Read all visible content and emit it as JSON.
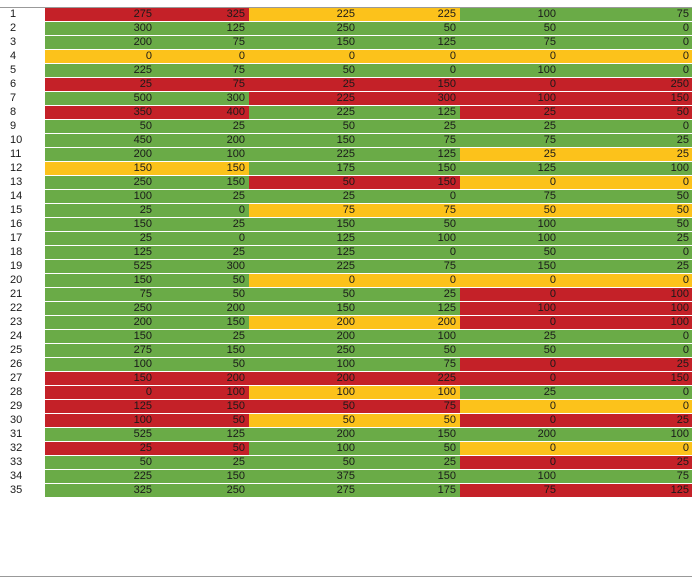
{
  "colors": {
    "green": "#6aab47",
    "red": "#c42128",
    "yellow": "#fcc21b"
  },
  "rows": [
    {
      "n": "1",
      "v": [
        "275",
        "325",
        "225",
        "225",
        "100",
        "75"
      ],
      "c": [
        "red",
        "yellow",
        "green"
      ]
    },
    {
      "n": "2",
      "v": [
        "300",
        "125",
        "250",
        "50",
        "50",
        "0"
      ],
      "c": [
        "green",
        "green",
        "green"
      ]
    },
    {
      "n": "3",
      "v": [
        "200",
        "75",
        "150",
        "125",
        "75",
        "0"
      ],
      "c": [
        "green",
        "green",
        "green"
      ]
    },
    {
      "n": "4",
      "v": [
        "0",
        "0",
        "0",
        "0",
        "0",
        "0"
      ],
      "c": [
        "yellow",
        "yellow",
        "yellow"
      ]
    },
    {
      "n": "5",
      "v": [
        "225",
        "75",
        "50",
        "0",
        "100",
        "0"
      ],
      "c": [
        "green",
        "green",
        "green"
      ]
    },
    {
      "n": "6",
      "v": [
        "25",
        "75",
        "25",
        "150",
        "0",
        "250"
      ],
      "c": [
        "red",
        "red",
        "red"
      ]
    },
    {
      "n": "7",
      "v": [
        "500",
        "300",
        "225",
        "300",
        "100",
        "150"
      ],
      "c": [
        "green",
        "red",
        "red"
      ]
    },
    {
      "n": "8",
      "v": [
        "350",
        "400",
        "225",
        "125",
        "25",
        "50"
      ],
      "c": [
        "red",
        "green",
        "red"
      ]
    },
    {
      "n": "9",
      "v": [
        "50",
        "25",
        "50",
        "25",
        "25",
        "0"
      ],
      "c": [
        "green",
        "green",
        "green"
      ]
    },
    {
      "n": "10",
      "v": [
        "450",
        "200",
        "150",
        "75",
        "75",
        "25"
      ],
      "c": [
        "green",
        "green",
        "green"
      ]
    },
    {
      "n": "11",
      "v": [
        "200",
        "100",
        "225",
        "125",
        "25",
        "25"
      ],
      "c": [
        "green",
        "green",
        "yellow"
      ]
    },
    {
      "n": "12",
      "v": [
        "150",
        "150",
        "175",
        "150",
        "125",
        "100"
      ],
      "c": [
        "yellow",
        "green",
        "green"
      ]
    },
    {
      "n": "13",
      "v": [
        "250",
        "150",
        "50",
        "150",
        "0",
        "0"
      ],
      "c": [
        "green",
        "red",
        "yellow"
      ]
    },
    {
      "n": "14",
      "v": [
        "100",
        "25",
        "25",
        "0",
        "75",
        "50"
      ],
      "c": [
        "green",
        "green",
        "green"
      ]
    },
    {
      "n": "15",
      "v": [
        "25",
        "0",
        "75",
        "75",
        "50",
        "50"
      ],
      "c": [
        "green",
        "yellow",
        "yellow"
      ]
    },
    {
      "n": "16",
      "v": [
        "150",
        "25",
        "150",
        "50",
        "100",
        "50"
      ],
      "c": [
        "green",
        "green",
        "green"
      ]
    },
    {
      "n": "17",
      "v": [
        "25",
        "0",
        "125",
        "100",
        "100",
        "25"
      ],
      "c": [
        "green",
        "green",
        "green"
      ]
    },
    {
      "n": "18",
      "v": [
        "125",
        "25",
        "125",
        "0",
        "50",
        "0"
      ],
      "c": [
        "green",
        "green",
        "green"
      ]
    },
    {
      "n": "19",
      "v": [
        "525",
        "300",
        "225",
        "75",
        "150",
        "25"
      ],
      "c": [
        "green",
        "green",
        "green"
      ]
    },
    {
      "n": "20",
      "v": [
        "150",
        "50",
        "0",
        "0",
        "0",
        "0"
      ],
      "c": [
        "green",
        "yellow",
        "yellow"
      ]
    },
    {
      "n": "21",
      "v": [
        "75",
        "50",
        "50",
        "25",
        "0",
        "100"
      ],
      "c": [
        "green",
        "green",
        "red"
      ]
    },
    {
      "n": "22",
      "v": [
        "250",
        "200",
        "150",
        "125",
        "100",
        "100"
      ],
      "c": [
        "green",
        "green",
        "red"
      ]
    },
    {
      "n": "23",
      "v": [
        "200",
        "150",
        "200",
        "200",
        "0",
        "100"
      ],
      "c": [
        "green",
        "yellow",
        "red"
      ]
    },
    {
      "n": "24",
      "v": [
        "150",
        "25",
        "200",
        "100",
        "25",
        "0"
      ],
      "c": [
        "green",
        "green",
        "green"
      ]
    },
    {
      "n": "25",
      "v": [
        "275",
        "150",
        "250",
        "50",
        "50",
        "0"
      ],
      "c": [
        "green",
        "green",
        "green"
      ]
    },
    {
      "n": "26",
      "v": [
        "100",
        "50",
        "100",
        "75",
        "0",
        "25"
      ],
      "c": [
        "green",
        "green",
        "red"
      ]
    },
    {
      "n": "27",
      "v": [
        "150",
        "200",
        "200",
        "225",
        "0",
        "150"
      ],
      "c": [
        "red",
        "red",
        "red"
      ]
    },
    {
      "n": "28",
      "v": [
        "0",
        "100",
        "100",
        "100",
        "25",
        "0"
      ],
      "c": [
        "red",
        "yellow",
        "green"
      ]
    },
    {
      "n": "29",
      "v": [
        "125",
        "150",
        "50",
        "75",
        "0",
        "0"
      ],
      "c": [
        "red",
        "red",
        "yellow"
      ]
    },
    {
      "n": "30",
      "v": [
        "100",
        "50",
        "50",
        "50",
        "0",
        "25"
      ],
      "c": [
        "red",
        "yellow",
        "red"
      ]
    },
    {
      "n": "31",
      "v": [
        "525",
        "125",
        "200",
        "150",
        "200",
        "100"
      ],
      "c": [
        "green",
        "green",
        "green"
      ]
    },
    {
      "n": "32",
      "v": [
        "25",
        "50",
        "100",
        "50",
        "0",
        "0"
      ],
      "c": [
        "red",
        "green",
        "yellow"
      ]
    },
    {
      "n": "33",
      "v": [
        "50",
        "25",
        "50",
        "25",
        "0",
        "25"
      ],
      "c": [
        "green",
        "green",
        "red"
      ]
    },
    {
      "n": "34",
      "v": [
        "225",
        "150",
        "375",
        "150",
        "100",
        "75"
      ],
      "c": [
        "green",
        "green",
        "green"
      ]
    },
    {
      "n": "35",
      "v": [
        "325",
        "250",
        "275",
        "175",
        "75",
        "125"
      ],
      "c": [
        "green",
        "green",
        "red"
      ]
    }
  ]
}
